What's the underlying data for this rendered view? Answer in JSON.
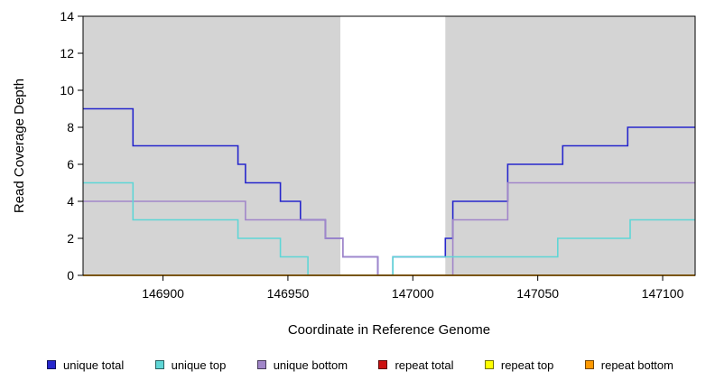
{
  "chart_data": {
    "type": "line",
    "title": "",
    "xlabel": "Coordinate in Reference Genome",
    "ylabel": "Read Coverage Depth",
    "xlim": [
      146868,
      147113
    ],
    "ylim": [
      0,
      14
    ],
    "xticks": [
      146900,
      146950,
      147000,
      147050,
      147100
    ],
    "yticks": [
      0,
      2,
      4,
      6,
      8,
      10,
      12,
      14
    ],
    "plot_bg": "#d4d4d4",
    "grid": false,
    "legend_position": "bottom",
    "highlight_region": {
      "x0": 146971,
      "x1": 147013,
      "color": "#ffffff"
    },
    "draw_order": [
      0,
      2,
      1,
      3,
      4,
      5
    ],
    "series": [
      {
        "name": "unique total",
        "color": "#2626cc",
        "points": [
          [
            146868,
            9
          ],
          [
            146888,
            9
          ],
          [
            146888,
            7
          ],
          [
            146930,
            7
          ],
          [
            146930,
            6
          ],
          [
            146933,
            6
          ],
          [
            146933,
            5
          ],
          [
            146947,
            5
          ],
          [
            146947,
            4
          ],
          [
            146955,
            4
          ],
          [
            146955,
            3
          ],
          [
            146965,
            3
          ],
          [
            146965,
            2
          ],
          [
            146972,
            2
          ],
          [
            146972,
            1
          ],
          [
            146986,
            1
          ],
          [
            146986,
            0
          ],
          [
            146992,
            0
          ],
          [
            146992,
            1
          ],
          [
            147013,
            1
          ],
          [
            147013,
            2
          ],
          [
            147016,
            2
          ],
          [
            147016,
            4
          ],
          [
            147038,
            4
          ],
          [
            147038,
            6
          ],
          [
            147060,
            6
          ],
          [
            147060,
            7
          ],
          [
            147086,
            7
          ],
          [
            147086,
            8
          ],
          [
            147113,
            8
          ]
        ]
      },
      {
        "name": "unique top",
        "color": "#5fd6d6",
        "points": [
          [
            146868,
            5
          ],
          [
            146888,
            5
          ],
          [
            146888,
            3
          ],
          [
            146930,
            3
          ],
          [
            146930,
            2
          ],
          [
            146947,
            2
          ],
          [
            146947,
            1
          ],
          [
            146958,
            1
          ],
          [
            146958,
            0
          ],
          [
            146992,
            0
          ],
          [
            146992,
            1
          ],
          [
            147058,
            1
          ],
          [
            147058,
            2
          ],
          [
            147087,
            2
          ],
          [
            147087,
            3
          ],
          [
            147113,
            3
          ]
        ]
      },
      {
        "name": "unique bottom",
        "color": "#a186c9",
        "points": [
          [
            146868,
            4
          ],
          [
            146933,
            4
          ],
          [
            146933,
            3
          ],
          [
            146965,
            3
          ],
          [
            146965,
            2
          ],
          [
            146972,
            2
          ],
          [
            146972,
            1
          ],
          [
            146986,
            1
          ],
          [
            146986,
            0
          ],
          [
            147016,
            0
          ],
          [
            147016,
            3
          ],
          [
            147038,
            3
          ],
          [
            147038,
            5
          ],
          [
            147113,
            5
          ]
        ]
      },
      {
        "name": "repeat total",
        "color": "#cc1111",
        "points": [
          [
            146868,
            0
          ],
          [
            147113,
            0
          ]
        ]
      },
      {
        "name": "repeat top",
        "color": "#ffff00",
        "points": [
          [
            146868,
            0
          ],
          [
            147113,
            0
          ]
        ]
      },
      {
        "name": "repeat bottom",
        "color": "#ff9900",
        "points": [
          [
            146868,
            0
          ],
          [
            147113,
            0
          ]
        ]
      }
    ]
  }
}
